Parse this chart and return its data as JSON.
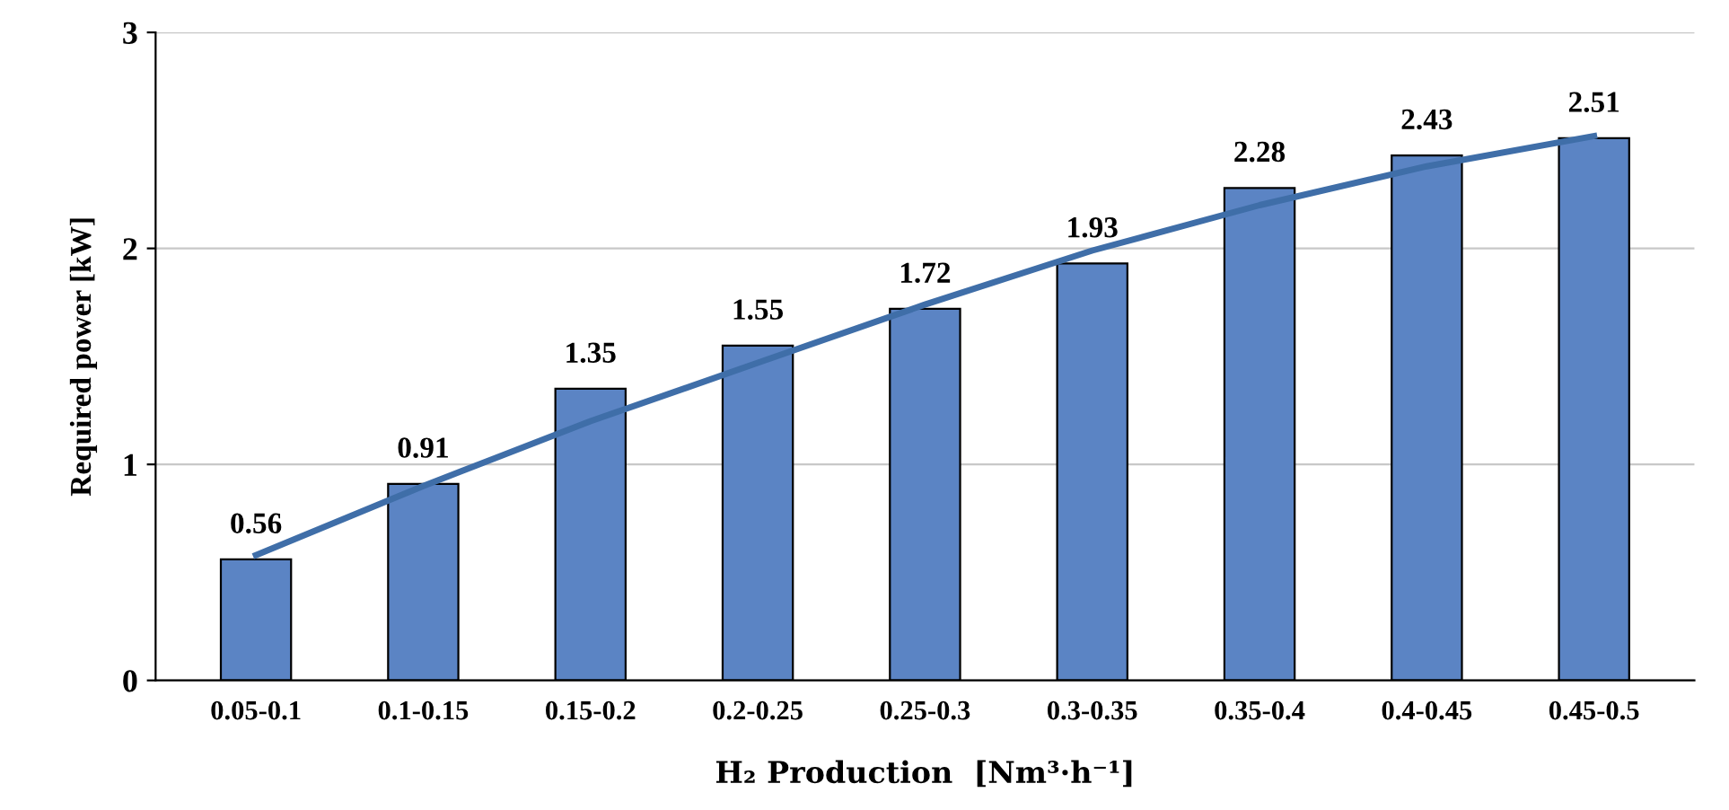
{
  "chart_data": {
    "type": "bar",
    "xlabel": "H₂ Production  [Nm³·h⁻¹]",
    "ylabel": "Required power [kW]",
    "categories": [
      "0.05-0.1",
      "0.1-0.15",
      "0.15-0.2",
      "0.2-0.25",
      "0.25-0.3",
      "0.3-0.35",
      "0.35-0.4",
      "0.4-0.45",
      "0.45-0.5"
    ],
    "series": [
      {
        "color": "#5b84c4",
        "values": [
          0.56,
          0.91,
          1.35,
          1.55,
          1.72,
          1.93,
          2.28,
          2.43,
          2.51
        ],
        "data_labels": true
      },
      {
        "type": "line",
        "color": "#3f6ea8",
        "values": [
          0.58,
          0.9,
          1.2,
          1.47,
          1.74,
          1.99,
          2.2,
          2.38,
          2.52
        ]
      }
    ],
    "ylim": [
      0,
      3
    ],
    "yticks": [
      0,
      1,
      2,
      3
    ],
    "grid": "y",
    "legend": false,
    "marker": "none",
    "line_style": "solid"
  }
}
